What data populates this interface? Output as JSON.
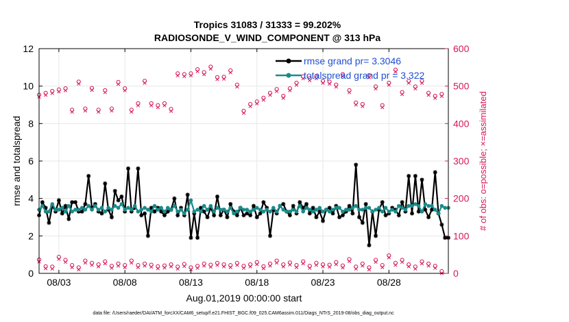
{
  "chart_data": {
    "type": "line",
    "title": "Tropics 31083 / 31333 = 99.202%",
    "subtitle": "RADIOSONDE_V_WIND_COMPONENT @ 313 hPa",
    "xlabel": "Aug.01,2019 00:00:00 start",
    "ylabel": "rmse and totalspread",
    "y2label": "# of obs: o=possible; ×=assimilated",
    "footnote": "data file: /Users/raeder/DAI/ATM_forcXX/CAM6_setup/f.e21.FHIST_BGC.f09_025.CAM6assim.011/Diags_NTrS_2019-08/obs_diag_output.nc",
    "xlim": [
      1.5,
      32.5
    ],
    "ylim": [
      0,
      12
    ],
    "y2lim": [
      0,
      600
    ],
    "x_ticks": [
      3,
      8,
      13,
      18,
      23,
      28
    ],
    "x_tick_labels": [
      "08/03",
      "08/08",
      "08/13",
      "08/18",
      "08/23",
      "08/28"
    ],
    "y_ticks": [
      0,
      2,
      4,
      6,
      8,
      10,
      12
    ],
    "y_tick_labels": [
      "0",
      "2",
      "4",
      "6",
      "8",
      "10",
      "12"
    ],
    "y2_ticks": [
      0,
      100,
      200,
      300,
      400,
      500,
      600
    ],
    "y2_tick_labels": [
      "0",
      "100",
      "200",
      "300",
      "400",
      "500",
      "600"
    ],
    "grid": true,
    "legend_position": "top-right",
    "legend": [
      "rmse grand pr= 3.3046",
      "totalspread grand pr = 3.322"
    ],
    "x": [
      1.5,
      1.75,
      2,
      2.25,
      2.5,
      2.75,
      3,
      3.25,
      3.5,
      3.75,
      4,
      4.25,
      4.5,
      4.75,
      5,
      5.25,
      5.5,
      5.75,
      6,
      6.25,
      6.5,
      6.75,
      7,
      7.25,
      7.5,
      7.75,
      8,
      8.25,
      8.5,
      8.75,
      9,
      9.25,
      9.5,
      9.75,
      10,
      10.25,
      10.5,
      10.75,
      11,
      11.25,
      11.5,
      11.75,
      12,
      12.25,
      12.5,
      12.75,
      13,
      13.25,
      13.5,
      13.75,
      14,
      14.25,
      14.5,
      14.75,
      15,
      15.25,
      15.5,
      15.75,
      16,
      16.25,
      16.5,
      16.75,
      17,
      17.25,
      17.5,
      17.75,
      18,
      18.25,
      18.5,
      18.75,
      19,
      19.25,
      19.5,
      19.75,
      20,
      20.25,
      20.5,
      20.75,
      21,
      21.25,
      21.5,
      21.75,
      22,
      22.25,
      22.5,
      22.75,
      23,
      23.25,
      23.5,
      23.75,
      24,
      24.25,
      24.5,
      24.75,
      25,
      25.25,
      25.5,
      25.75,
      26,
      26.25,
      26.5,
      26.75,
      27,
      27.25,
      27.5,
      27.75,
      28,
      28.25,
      28.5,
      28.75,
      29,
      29.25,
      29.5,
      29.75,
      30,
      30.25,
      30.5,
      30.75,
      31,
      31.25,
      31.5,
      31.75,
      32,
      32.25,
      32.5
    ],
    "series": [
      {
        "name": "rmse grand pr= 3.3046",
        "color": "#000000",
        "values": [
          3.1,
          3.8,
          3.5,
          2.7,
          3.6,
          3.3,
          3.9,
          3.2,
          3.6,
          2.9,
          3.8,
          3.8,
          3.3,
          3.3,
          3.7,
          5.2,
          3.5,
          3.7,
          3.3,
          3.2,
          4.8,
          3.4,
          3.0,
          4.4,
          3.9,
          4.1,
          3.3,
          5.6,
          3.3,
          3.5,
          5.6,
          3.1,
          3.2,
          2.0,
          3.5,
          3.3,
          3.5,
          3.3,
          3.1,
          3.3,
          3.4,
          4.0,
          3.1,
          3.5,
          3.1,
          4.2,
          1.9,
          3.2,
          1.9,
          3.5,
          3.3,
          3.0,
          3.5,
          3.1,
          4.1,
          3.1,
          3.4,
          3.0,
          3.7,
          3.3,
          3.1,
          3.5,
          3.1,
          3.2,
          3.1,
          3.6,
          3.0,
          3.2,
          3.8,
          3.5,
          2.0,
          3.4,
          3.2,
          3.6,
          3.7,
          3.3,
          3.1,
          3.6,
          3.2,
          3.8,
          3.5,
          3.7,
          3.2,
          3.5,
          3.0,
          3.3,
          2.8,
          3.4,
          3.5,
          3.2,
          3.6,
          3.0,
          3.1,
          3.3,
          3.6,
          3.2,
          5.8,
          3.0,
          2.7,
          3.7,
          1.5,
          3.3,
          2.0,
          3.4,
          3.8,
          3.1,
          3.2,
          3.5,
          3.4,
          3.1,
          3.8,
          3.3,
          5.2,
          3.2,
          5.2,
          3.3,
          5.0,
          3.4,
          3.0,
          3.4,
          5.4,
          3.2,
          2.6,
          1.9,
          1.9
        ],
        "legend_label": "rmse grand pr= 3.3046"
      },
      {
        "name": "totalspread grand pr = 3.322",
        "color": "#1b8a8a",
        "values": [
          3.4,
          3.6,
          3.3,
          3.3,
          3.7,
          3.4,
          3.4,
          3.5,
          3.3,
          3.6,
          3.3,
          3.4,
          3.4,
          3.5,
          3.4,
          3.6,
          3.4,
          3.6,
          3.4,
          3.5,
          3.3,
          3.5,
          3.4,
          3.6,
          3.5,
          3.7,
          3.4,
          3.5,
          3.4,
          3.6,
          3.3,
          3.4,
          3.5,
          3.4,
          3.3,
          3.6,
          3.4,
          3.5,
          3.3,
          3.5,
          3.4,
          3.6,
          3.3,
          3.4,
          3.2,
          3.4,
          3.9,
          3.3,
          3.4,
          3.3,
          3.6,
          3.4,
          3.6,
          3.3,
          3.5,
          3.4,
          3.4,
          3.3,
          3.5,
          3.2,
          3.3,
          3.5,
          3.4,
          3.4,
          3.3,
          3.4,
          3.5,
          3.4,
          3.3,
          3.4,
          3.3,
          3.5,
          3.3,
          3.6,
          3.4,
          3.3,
          3.3,
          3.4,
          3.3,
          3.6,
          3.3,
          3.5,
          3.4,
          3.3,
          3.4,
          3.5,
          3.3,
          3.4,
          3.3,
          3.4,
          3.5,
          3.5,
          3.3,
          3.4,
          3.4,
          3.5,
          3.6,
          3.4,
          3.4,
          3.5,
          3.5,
          3.3,
          3.4,
          3.5,
          3.3,
          3.5,
          3.3,
          3.4,
          3.3,
          3.6,
          3.5,
          3.4,
          3.6,
          3.6,
          3.7,
          3.6,
          3.3,
          3.7,
          3.6,
          3.6,
          3.4,
          3.2,
          3.6,
          3.5,
          3.5
        ],
        "legend_label": "totalspread grand pr = 3.322"
      }
    ],
    "obs_upper": {
      "x": [
        1.5,
        2,
        2.5,
        3,
        3.5,
        4,
        4.5,
        5,
        5.5,
        6,
        6.5,
        7,
        7.5,
        8,
        8.5,
        9,
        9.5,
        10,
        10.5,
        11,
        11.5,
        12,
        12.5,
        13,
        13.5,
        14,
        14.5,
        15,
        15.5,
        16,
        16.5,
        17,
        17.5,
        18,
        18.5,
        19,
        19.5,
        20,
        20.5,
        21,
        21.5,
        22,
        22.5,
        23,
        23.5,
        24,
        24.5,
        25,
        25.5,
        26,
        26.5,
        27,
        27.5,
        28,
        28.5,
        29,
        29.5,
        30,
        30.5,
        31,
        31.5,
        32
      ],
      "values": [
        473,
        478,
        483,
        487,
        490,
        433,
        508,
        436,
        491,
        433,
        485,
        436,
        507,
        490,
        433,
        450,
        510,
        450,
        445,
        450,
        435,
        530,
        528,
        530,
        541,
        533,
        548,
        520,
        521,
        538,
        500,
        430,
        448,
        455,
        465,
        478,
        488,
        470,
        490,
        505,
        522,
        517,
        522,
        510,
        508,
        500,
        528,
        485,
        452,
        448,
        525,
        495,
        445,
        505,
        540,
        480,
        510,
        495,
        510,
        478,
        470,
        475
      ]
    },
    "obs_lower": {
      "x": [
        1.5,
        2,
        2.5,
        3,
        3.5,
        4,
        4.5,
        5,
        5.5,
        6,
        6.5,
        7,
        7.5,
        8,
        8.5,
        9,
        9.5,
        10,
        10.5,
        11,
        11.5,
        12,
        12.5,
        13,
        13.5,
        14,
        14.5,
        15,
        15.5,
        16,
        16.5,
        17,
        17.5,
        18,
        18.5,
        19,
        19.5,
        20,
        20.5,
        21,
        21.5,
        22,
        22.5,
        23,
        23.5,
        24,
        24.5,
        25,
        25.5,
        26,
        26.5,
        27,
        27.5,
        28,
        28.5,
        29,
        29.5,
        30,
        30.5,
        31,
        31.5,
        32
      ],
      "values": [
        33,
        15,
        14,
        40,
        32,
        18,
        12,
        30,
        24,
        20,
        28,
        16,
        22,
        18,
        30,
        18,
        22,
        19,
        15,
        17,
        20,
        14,
        21,
        12,
        16,
        22,
        19,
        24,
        20,
        18,
        24,
        16,
        20,
        26,
        15,
        22,
        30,
        20,
        25,
        18,
        28,
        16,
        24,
        20,
        19,
        26,
        17,
        34,
        14,
        22,
        12,
        32,
        18,
        44,
        24,
        32,
        20,
        14,
        28,
        22,
        16,
        2
      ]
    }
  }
}
